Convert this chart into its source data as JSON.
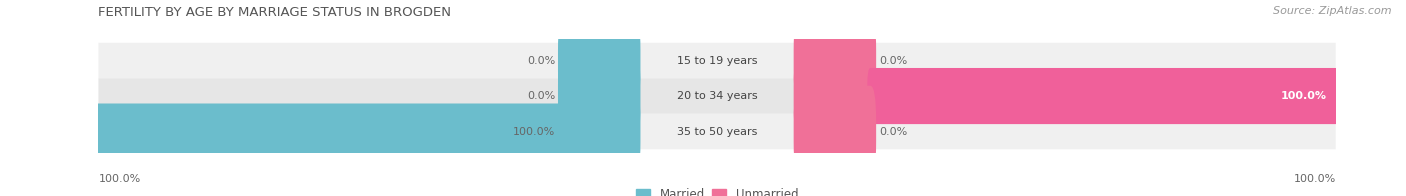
{
  "title": "FERTILITY BY AGE BY MARRIAGE STATUS IN BROGDEN",
  "source": "Source: ZipAtlas.com",
  "categories": [
    "15 to 19 years",
    "20 to 34 years",
    "35 to 50 years"
  ],
  "married_values": [
    0.0,
    0.0,
    100.0
  ],
  "unmarried_values": [
    0.0,
    100.0,
    0.0
  ],
  "married_color": "#6bbdcc",
  "unmarried_color": "#f07098",
  "unmarried_color_full": "#f0609a",
  "row_bg_light": "#f0f0f0",
  "row_bg_dark": "#e6e6e6",
  "title_fontsize": 9.5,
  "source_fontsize": 8,
  "label_fontsize": 8,
  "category_fontsize": 8,
  "legend_fontsize": 8.5,
  "bar_height": 0.58,
  "figsize": [
    14.06,
    1.96
  ],
  "dpi": 100
}
